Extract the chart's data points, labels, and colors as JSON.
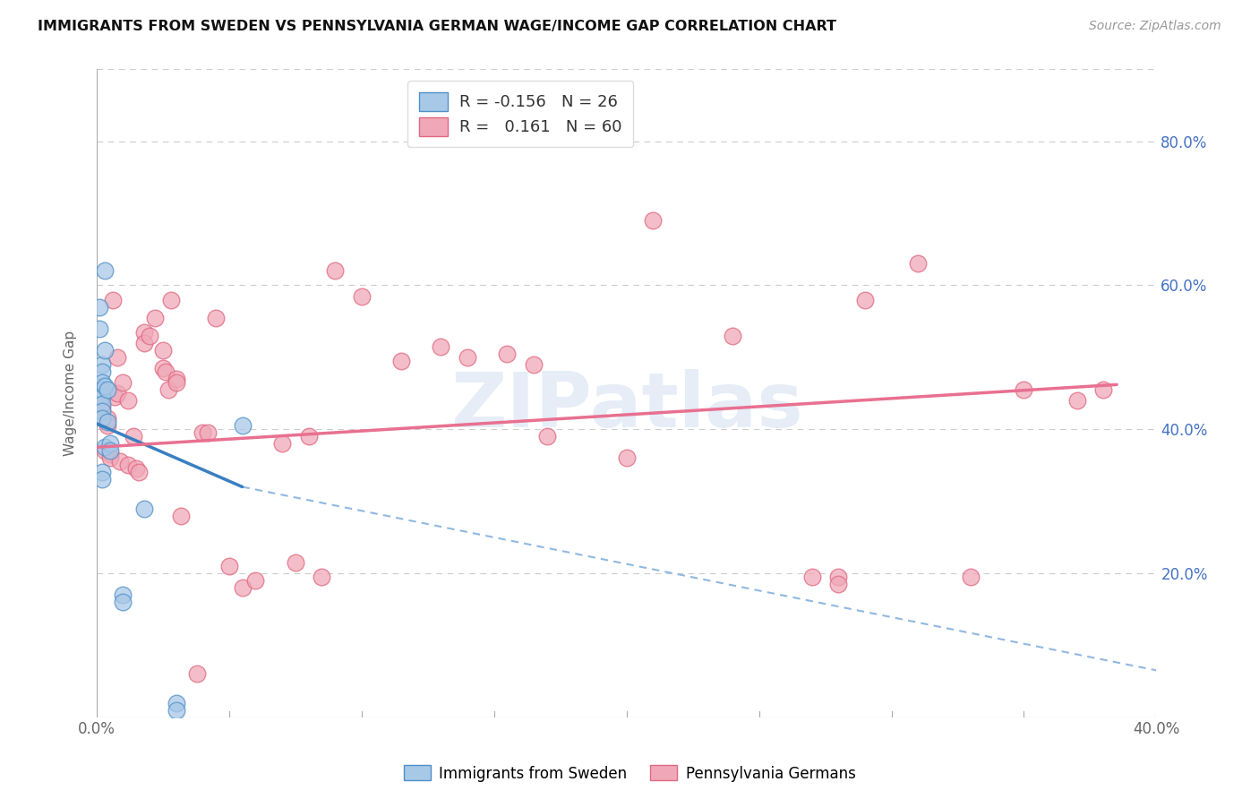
{
  "title": "IMMIGRANTS FROM SWEDEN VS PENNSYLVANIA GERMAN WAGE/INCOME GAP CORRELATION CHART",
  "source": "Source: ZipAtlas.com",
  "ylabel_label": "Wage/Income Gap",
  "xlim": [
    0.0,
    0.4
  ],
  "ylim": [
    0.0,
    0.9
  ],
  "xtick_vals": [
    0.0,
    0.4
  ],
  "xtick_labels": [
    "0.0%",
    "40.0%"
  ],
  "ytick_vals": [
    0.2,
    0.4,
    0.6,
    0.8
  ],
  "ytick_labels": [
    "20.0%",
    "40.0%",
    "60.0%",
    "80.0%"
  ],
  "legend_r1": "R = -0.156   N = 26",
  "legend_r2": "R =   0.161   N = 60",
  "watermark": "ZIPatlas",
  "blue_color": "#a8c8e8",
  "pink_color": "#f0a8b8",
  "blue_edge_color": "#5090c8",
  "pink_edge_color": "#e06880",
  "blue_line_color": "#3a7fc1",
  "pink_line_color": "#e87090",
  "dashed_line_color": "#90b8e0",
  "scatter_blue": [
    [
      0.001,
      0.57
    ],
    [
      0.001,
      0.54
    ],
    [
      0.003,
      0.62
    ],
    [
      0.002,
      0.49
    ],
    [
      0.002,
      0.48
    ],
    [
      0.002,
      0.465
    ],
    [
      0.002,
      0.455
    ],
    [
      0.002,
      0.445
    ],
    [
      0.002,
      0.435
    ],
    [
      0.002,
      0.425
    ],
    [
      0.002,
      0.415
    ],
    [
      0.002,
      0.34
    ],
    [
      0.002,
      0.33
    ],
    [
      0.003,
      0.51
    ],
    [
      0.003,
      0.46
    ],
    [
      0.003,
      0.375
    ],
    [
      0.004,
      0.455
    ],
    [
      0.004,
      0.41
    ],
    [
      0.005,
      0.38
    ],
    [
      0.005,
      0.37
    ],
    [
      0.01,
      0.17
    ],
    [
      0.01,
      0.16
    ],
    [
      0.018,
      0.29
    ],
    [
      0.03,
      0.02
    ],
    [
      0.03,
      0.01
    ],
    [
      0.055,
      0.405
    ]
  ],
  "scatter_pink": [
    [
      0.002,
      0.43
    ],
    [
      0.003,
      0.37
    ],
    [
      0.004,
      0.415
    ],
    [
      0.004,
      0.405
    ],
    [
      0.005,
      0.365
    ],
    [
      0.005,
      0.36
    ],
    [
      0.006,
      0.58
    ],
    [
      0.007,
      0.445
    ],
    [
      0.008,
      0.45
    ],
    [
      0.008,
      0.5
    ],
    [
      0.009,
      0.355
    ],
    [
      0.01,
      0.465
    ],
    [
      0.012,
      0.35
    ],
    [
      0.012,
      0.44
    ],
    [
      0.014,
      0.39
    ],
    [
      0.015,
      0.345
    ],
    [
      0.016,
      0.34
    ],
    [
      0.018,
      0.535
    ],
    [
      0.018,
      0.52
    ],
    [
      0.02,
      0.53
    ],
    [
      0.022,
      0.555
    ],
    [
      0.025,
      0.51
    ],
    [
      0.025,
      0.485
    ],
    [
      0.026,
      0.48
    ],
    [
      0.027,
      0.455
    ],
    [
      0.028,
      0.58
    ],
    [
      0.03,
      0.47
    ],
    [
      0.03,
      0.465
    ],
    [
      0.032,
      0.28
    ],
    [
      0.038,
      0.06
    ],
    [
      0.04,
      0.395
    ],
    [
      0.042,
      0.395
    ],
    [
      0.045,
      0.555
    ],
    [
      0.05,
      0.21
    ],
    [
      0.055,
      0.18
    ],
    [
      0.06,
      0.19
    ],
    [
      0.07,
      0.38
    ],
    [
      0.075,
      0.215
    ],
    [
      0.08,
      0.39
    ],
    [
      0.085,
      0.195
    ],
    [
      0.09,
      0.62
    ],
    [
      0.1,
      0.585
    ],
    [
      0.115,
      0.495
    ],
    [
      0.13,
      0.515
    ],
    [
      0.14,
      0.5
    ],
    [
      0.155,
      0.505
    ],
    [
      0.165,
      0.49
    ],
    [
      0.17,
      0.39
    ],
    [
      0.2,
      0.36
    ],
    [
      0.21,
      0.69
    ],
    [
      0.24,
      0.53
    ],
    [
      0.27,
      0.195
    ],
    [
      0.28,
      0.195
    ],
    [
      0.28,
      0.185
    ],
    [
      0.29,
      0.58
    ],
    [
      0.31,
      0.63
    ],
    [
      0.33,
      0.195
    ],
    [
      0.35,
      0.455
    ],
    [
      0.37,
      0.44
    ],
    [
      0.38,
      0.455
    ]
  ],
  "blue_trend_x": [
    0.0,
    0.055
  ],
  "blue_trend_y": [
    0.408,
    0.32
  ],
  "pink_trend_x": [
    0.0,
    0.385
  ],
  "pink_trend_y": [
    0.375,
    0.462
  ],
  "dashed_trend_x": [
    0.055,
    0.4
  ],
  "dashed_trend_y": [
    0.32,
    0.065
  ]
}
